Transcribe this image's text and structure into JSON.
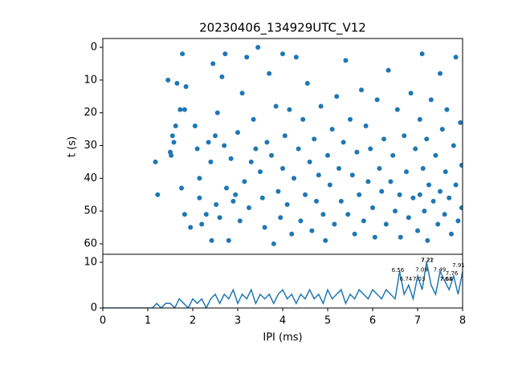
{
  "chart_data": [
    {
      "type": "scatter",
      "title": "20230406_134929UTC_V12",
      "ylabel": "t (s)",
      "color": "#1f77b4",
      "xlim": [
        0,
        8
      ],
      "ylim": [
        -2.7,
        63.2
      ],
      "y_inverted": true,
      "yticks": [
        0,
        10,
        20,
        30,
        40,
        50,
        60
      ],
      "x": [
        1.17,
        1.22,
        1.45,
        1.5,
        1.52,
        1.55,
        1.58,
        1.62,
        1.65,
        1.72,
        1.75,
        1.77,
        1.82,
        1.82,
        1.85,
        1.95,
        2.05,
        2.1,
        2.15,
        2.15,
        2.2,
        2.3,
        2.35,
        2.4,
        2.42,
        2.45,
        2.5,
        2.52,
        2.55,
        2.6,
        2.65,
        2.7,
        2.72,
        2.75,
        2.8,
        2.85,
        2.9,
        2.95,
        3.0,
        3.05,
        3.1,
        3.15,
        3.2,
        3.25,
        3.3,
        3.35,
        3.4,
        3.45,
        3.5,
        3.55,
        3.6,
        3.65,
        3.7,
        3.75,
        3.8,
        3.85,
        3.9,
        3.95,
        4.0,
        4.0,
        4.05,
        4.1,
        4.15,
        4.2,
        4.25,
        4.3,
        4.35,
        4.4,
        4.45,
        4.5,
        4.55,
        4.6,
        4.65,
        4.7,
        4.75,
        4.8,
        4.85,
        4.9,
        4.95,
        5.0,
        5.05,
        5.1,
        5.15,
        5.2,
        5.25,
        5.3,
        5.35,
        5.4,
        5.45,
        5.5,
        5.55,
        5.6,
        5.65,
        5.7,
        5.75,
        5.8,
        5.85,
        5.9,
        5.95,
        6.0,
        6.05,
        6.1,
        6.15,
        6.2,
        6.25,
        6.3,
        6.35,
        6.4,
        6.45,
        6.5,
        6.55,
        6.6,
        6.62,
        6.7,
        6.75,
        6.8,
        6.85,
        6.9,
        6.95,
        7.0,
        7.05,
        7.05,
        7.1,
        7.12,
        7.15,
        7.2,
        7.22,
        7.25,
        7.3,
        7.35,
        7.4,
        7.45,
        7.5,
        7.5,
        7.55,
        7.6,
        7.62,
        7.65,
        7.7,
        7.75,
        7.8,
        7.85,
        7.85,
        7.9,
        7.95,
        7.98,
        7.98
      ],
      "values": [
        35,
        45,
        10,
        32,
        33,
        27,
        29,
        24,
        11,
        19,
        43,
        2,
        19,
        51,
        12,
        55,
        24,
        31,
        40,
        46,
        54,
        51,
        29,
        35,
        59,
        5,
        27,
        48,
        20,
        52,
        9,
        30,
        2,
        43,
        59,
        34,
        47,
        45,
        26,
        53,
        14,
        41,
        3,
        49,
        35,
        22,
        31,
        0,
        38,
        46,
        55,
        29,
        8,
        33,
        60,
        18,
        44,
        52,
        2,
        37,
        27,
        48,
        19,
        57,
        40,
        3,
        31,
        53,
        22,
        45,
        11,
        35,
        56,
        28,
        47,
        39,
        18,
        51,
        59,
        33,
        42,
        25,
        54,
        15,
        37,
        47,
        29,
        4,
        51,
        22,
        39,
        57,
        32,
        45,
        13,
        53,
        24,
        41,
        31,
        49,
        58,
        16,
        37,
        44,
        28,
        54,
        7,
        41,
        33,
        50,
        19,
        45,
        58,
        27,
        38,
        52,
        14,
        46,
        31,
        56,
        22,
        45,
        2,
        37,
        50,
        28,
        59,
        42,
        16,
        47,
        33,
        54,
        8,
        44,
        25,
        51,
        38,
        19,
        46,
        57,
        30,
        3,
        42,
        53,
        23,
        36,
        49
      ]
    },
    {
      "type": "line",
      "xlabel": "IPI (ms)",
      "color": "#1f77b4",
      "xlim": [
        0,
        8
      ],
      "xticks": [
        0,
        1,
        2,
        3,
        4,
        5,
        6,
        7,
        8
      ],
      "ylim": [
        0,
        11.75
      ],
      "yticks": [
        0,
        10
      ],
      "x": [
        0,
        1.1,
        1.2,
        1.3,
        1.4,
        1.5,
        1.6,
        1.7,
        1.8,
        1.9,
        2.0,
        2.1,
        2.2,
        2.3,
        2.4,
        2.5,
        2.6,
        2.7,
        2.8,
        2.9,
        3.0,
        3.1,
        3.2,
        3.3,
        3.4,
        3.5,
        3.6,
        3.7,
        3.8,
        3.9,
        4.0,
        4.1,
        4.2,
        4.3,
        4.4,
        4.5,
        4.6,
        4.7,
        4.8,
        4.9,
        5.0,
        5.1,
        5.2,
        5.3,
        5.4,
        5.5,
        5.6,
        5.7,
        5.8,
        5.9,
        6.0,
        6.1,
        6.2,
        6.3,
        6.4,
        6.5,
        6.6,
        6.7,
        6.8,
        6.9,
        7.0,
        7.1,
        7.2,
        7.3,
        7.4,
        7.5,
        7.6,
        7.7,
        7.8,
        7.9,
        8.0
      ],
      "values": [
        0,
        0,
        1,
        0,
        1,
        1,
        0,
        2,
        1,
        0,
        2,
        1,
        2,
        0,
        2,
        3,
        1,
        3,
        2,
        4,
        1,
        3,
        2,
        4,
        1,
        3,
        2,
        3,
        1,
        3,
        4,
        2,
        3,
        1,
        3,
        2,
        4,
        2,
        3,
        1,
        4,
        2,
        3,
        4,
        1,
        3,
        2,
        4,
        3,
        2,
        4,
        3,
        2,
        4,
        3,
        2,
        8,
        3,
        5,
        2,
        7,
        4,
        10,
        5,
        3,
        8,
        6,
        4,
        7,
        3,
        8
      ],
      "annotations": [
        {
          "x": 6.56,
          "y": 8.2,
          "label": "6.56"
        },
        {
          "x": 6.74,
          "y": 6.3,
          "label": "6.74"
        },
        {
          "x": 7.03,
          "y": 6.3,
          "label": "7.03"
        },
        {
          "x": 7.09,
          "y": 8.3,
          "label": "7.09"
        },
        {
          "x": 7.21,
          "y": 10.4,
          "label": "7.21"
        },
        {
          "x": 7.22,
          "y": 10.4,
          "label": "7.22"
        },
        {
          "x": 7.49,
          "y": 8.3,
          "label": "7.49"
        },
        {
          "x": 7.63,
          "y": 6.3,
          "label": "7.63"
        },
        {
          "x": 7.64,
          "y": 6.3,
          "label": "7.64"
        },
        {
          "x": 7.76,
          "y": 7.5,
          "label": "7.76"
        },
        {
          "x": 7.91,
          "y": 9.3,
          "label": "7.91"
        }
      ]
    }
  ]
}
